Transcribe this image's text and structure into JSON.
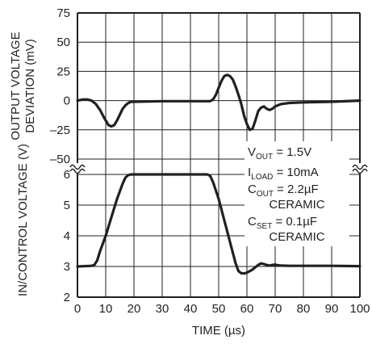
{
  "chart_data": {
    "type": "line",
    "xlabel": "TIME (µs)",
    "x_ticks": [
      "0",
      "10",
      "20",
      "30",
      "40",
      "50",
      "60",
      "70",
      "80",
      "90",
      "100"
    ],
    "xlim": [
      0,
      100
    ],
    "grid": true,
    "panels": [
      {
        "ylabel": [
          "OUTPUT VOLTAGE",
          "DEVIATION (mV)"
        ],
        "ylim": [
          -50,
          75
        ],
        "y_ticks": [
          "75",
          "50",
          "25",
          "0",
          "–25",
          "–50"
        ],
        "series": [
          {
            "x": [
              0,
              2,
              3.5,
              5,
              6.5,
              8,
              9.5,
              11,
              12,
              13,
              14,
              15,
              16,
              17,
              18,
              19,
              20,
              30,
              40,
              47,
              48,
              49,
              50,
              51,
              52,
              53,
              54,
              55,
              56,
              57,
              58,
              59,
              60,
              61,
              62,
              63,
              64,
              65,
              66,
              67,
              68,
              69,
              70,
              72,
              75,
              80,
              90,
              100
            ],
            "y": [
              0,
              1,
              1,
              0,
              -3,
              -8,
              -15,
              -21,
              -22,
              -21,
              -17,
              -12,
              -7,
              -4,
              -2,
              -1,
              -1,
              -0.5,
              -0.5,
              -0.5,
              1,
              5,
              11,
              17,
              21,
              22,
              21,
              18,
              12,
              5,
              -3,
              -13,
              -20,
              -25,
              -24,
              -17,
              -9,
              -6,
              -5,
              -7,
              -8,
              -7,
              -5,
              -3,
              -2,
              -1.5,
              -1,
              0
            ]
          }
        ]
      },
      {
        "ylabel": [
          "IN/CONTROL VOLTAGE (V)"
        ],
        "ylim": [
          2,
          6.5
        ],
        "y_ticks": [
          "6",
          "5",
          "4",
          "3",
          "2"
        ],
        "series": [
          {
            "x": [
              0,
              5,
              6,
              7,
              8,
              10,
              12,
              14,
              16,
              17,
              18,
              19,
              20,
              30,
              40,
              45,
              46,
              47,
              48,
              50,
              52,
              54,
              56,
              57,
              58,
              59,
              60,
              62,
              64,
              65,
              66,
              67,
              68,
              69,
              70,
              71,
              72,
              75,
              80,
              90,
              100
            ],
            "y": [
              3,
              3.02,
              3.05,
              3.2,
              3.5,
              4.0,
              4.6,
              5.2,
              5.7,
              5.9,
              5.98,
              6.0,
              6.0,
              6.0,
              6.0,
              6.0,
              6.0,
              5.95,
              5.75,
              5.2,
              4.5,
              3.8,
              3.1,
              2.85,
              2.78,
              2.77,
              2.8,
              2.9,
              3.05,
              3.1,
              3.08,
              3.05,
              3.03,
              3.05,
              3.06,
              3.04,
              3.03,
              3.02,
              3.02,
              3.02,
              3.01
            ]
          }
        ]
      }
    ],
    "annotations": [
      {
        "main": "V",
        "sub": "OUT",
        "rest": " = 1.5V"
      },
      {
        "main": "I",
        "sub": "LOAD",
        "rest": " = 10mA"
      },
      {
        "main": "C",
        "sub": "OUT",
        "rest": " = 2.2µF"
      },
      {
        "main": "CERAMIC",
        "sub": "",
        "rest": ""
      },
      {
        "main": "C",
        "sub": "SET",
        "rest": " = 0.1µF"
      },
      {
        "main": "CERAMIC",
        "sub": "",
        "rest": ""
      }
    ],
    "axis_break_marks": true,
    "colors": {
      "line": "#231f20",
      "grid": "#231f20",
      "text": "#231f20"
    }
  }
}
